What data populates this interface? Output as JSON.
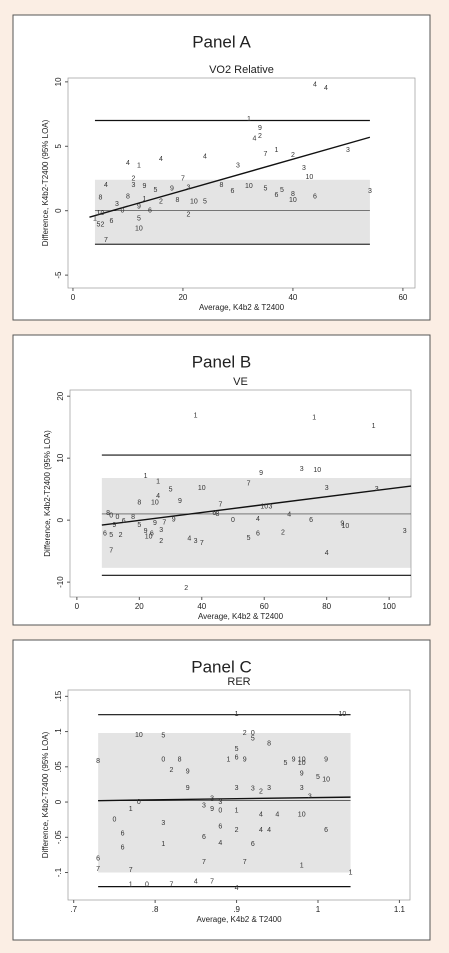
{
  "chart_data": [
    {
      "type": "scatter",
      "title": "Panel A",
      "subtitle": "VO2 Relative",
      "xlabel": "Average, K4b2 & T2400",
      "ylabel": "Difference, K4b2-T2400 (95% LOA)",
      "xlim": [
        -0.9,
        62.2
      ],
      "ylim": [
        -6,
        10.3
      ],
      "xticks": [
        0,
        20,
        40,
        60
      ],
      "yticks": [
        -5,
        0,
        5,
        10
      ],
      "loa_upper": 7.0,
      "loa_lower": -2.6,
      "mean": 0,
      "band": [
        -2.5,
        2.4
      ],
      "line_x": [
        4,
        54
      ],
      "regression": {
        "x": [
          3,
          54
        ],
        "values": [
          -0.5,
          5.7
        ]
      },
      "series": [
        {
          "color": "#333333",
          "x": [
            44,
            46,
            32,
            34,
            33,
            34,
            35,
            37,
            40,
            24,
            16,
            10,
            12,
            30,
            42,
            20,
            11,
            50,
            43,
            6,
            11,
            13,
            15,
            18,
            21,
            27,
            29,
            32,
            35,
            38,
            40,
            37,
            40,
            44,
            54,
            5,
            10,
            13,
            16,
            19,
            22,
            24,
            8,
            12,
            14,
            9,
            21,
            5,
            4,
            7,
            12,
            5,
            12,
            6
          ],
          "values": [
            9.8,
            9.5,
            7.1,
            6.4,
            5.6,
            5.8,
            4.4,
            4.7,
            4.3,
            4.2,
            4.0,
            3.7,
            3.5,
            3.5,
            3.3,
            2.5,
            2.5,
            4.7,
            2.6,
            2.0,
            2.0,
            1.9,
            1.6,
            1.7,
            1.8,
            2.0,
            1.5,
            1.9,
            1.7,
            1.6,
            1.3,
            1.2,
            0.8,
            1.1,
            1.5,
            1.0,
            1.1,
            0.9,
            0.7,
            0.8,
            0.7,
            0.7,
            0.5,
            0.3,
            0.0,
            0.0,
            -0.3,
            -0.2,
            -0.6,
            -0.8,
            -0.6,
            -1.1,
            -1.4,
            -2.3
          ],
          "markers": [
            "4",
            "4",
            "1",
            "9",
            "4",
            "2",
            "7",
            "1",
            "2",
            "4",
            "4",
            "4",
            "1",
            "3",
            "3",
            "7",
            "2",
            "3",
            "10",
            "4",
            "3",
            "9",
            "5",
            "9",
            "3",
            "8",
            "6",
            "10",
            "5",
            "5",
            "8",
            "6",
            "10",
            "6",
            "3",
            "8",
            "8",
            "1",
            "2",
            "8",
            "10",
            "5",
            "3",
            "9",
            "6",
            "0",
            "2",
            "10",
            "1",
            "6",
            "5",
            "52",
            "10",
            "7"
          ]
        }
      ]
    },
    {
      "type": "scatter",
      "title": "Panel B",
      "subtitle": "VE",
      "xlabel": "Average, K4b2 & T2400",
      "ylabel": "Difference, K4b2-T2400 (95% LOA)",
      "xlim": [
        -2.2,
        107
      ],
      "ylim": [
        -12.4,
        21
      ],
      "xticks": [
        0,
        20,
        40,
        60,
        80,
        100
      ],
      "yticks": [
        -10,
        0,
        10,
        20
      ],
      "loa_upper": 10.5,
      "loa_lower": -8.9,
      "mean": 1.0,
      "band": [
        -7.7,
        6.8
      ],
      "line_x": [
        8,
        107
      ],
      "regression": {
        "x": [
          8,
          107
        ],
        "values": [
          -0.8,
          5.5
        ]
      },
      "series": [
        {
          "color": "#333333",
          "x": [
            38,
            76,
            95,
            72,
            77,
            59,
            55,
            80,
            96,
            22,
            26,
            30,
            40,
            26,
            20,
            25,
            33,
            46,
            60,
            62,
            68,
            44,
            45,
            10,
            11,
            13,
            18,
            15,
            12,
            20,
            25,
            28,
            31,
            50,
            58,
            75,
            85,
            86,
            105,
            9,
            11,
            14,
            22,
            24,
            27,
            23,
            27,
            36,
            38,
            40,
            58,
            55,
            66,
            80,
            11,
            35
          ],
          "values": [
            16.9,
            16.5,
            15.2,
            8.2,
            8.1,
            7.6,
            5.9,
            5.2,
            5.0,
            7.1,
            6.2,
            4.9,
            5.2,
            3.9,
            2.8,
            2.8,
            3.1,
            2.5,
            2.2,
            2.2,
            0.9,
            1.1,
            1.0,
            1.1,
            0.7,
            0.5,
            0.5,
            -0.2,
            -0.8,
            -0.8,
            -0.5,
            -0.4,
            0.1,
            0.0,
            0.2,
            0.0,
            -0.6,
            -1.0,
            -1.8,
            -2.2,
            -2.4,
            -2.4,
            -1.8,
            -2.2,
            -1.6,
            -2.7,
            -3.4,
            -3.0,
            -3.4,
            -3.7,
            -2.2,
            -2.9,
            -2.0,
            -5.3,
            -4.9,
            -11.0
          ],
          "markers": [
            "1",
            "1",
            "1",
            "3",
            "10",
            "9",
            "7",
            "3",
            "3",
            "1",
            "1",
            "5",
            "10",
            "4",
            "8",
            "10",
            "9",
            "7",
            "10",
            "3",
            "4",
            "6",
            "8",
            "8",
            "0",
            "0",
            "8",
            "6",
            "9",
            "5",
            "9",
            "7",
            "9",
            "0",
            "4",
            "6",
            "9",
            "10",
            "3",
            "6",
            "5",
            "2",
            "9",
            "6",
            "3",
            "10",
            "2",
            "4",
            "3",
            "7",
            "6",
            "5",
            "2",
            "4",
            "7",
            "2"
          ]
        }
      ]
    },
    {
      "type": "scatter",
      "title": "Panel C",
      "subtitle": "RER",
      "xlabel": "Average, K4b2 & T2400",
      "ylabel": "Difference, K4b2-T2400 (95% LOA)",
      "xlim": [
        0.693,
        1.113
      ],
      "ylim": [
        -0.139,
        0.159
      ],
      "xticks": [
        {
          "value": 0.7,
          "label": ".7"
        },
        {
          "value": 0.8,
          "label": ".8"
        },
        {
          "value": 0.9,
          "label": ".9"
        },
        1,
        1.1
      ],
      "yticks": [
        {
          "value": -0.1,
          "label": "-.1"
        },
        {
          "value": -0.05,
          "label": "-.05"
        },
        0,
        {
          "value": 0.05,
          "label": ".05"
        },
        {
          "value": 0.1,
          "label": ".1"
        },
        {
          "value": 0.15,
          "label": ".15"
        }
      ],
      "loa_upper": 0.124,
      "loa_lower": -0.12,
      "mean": 0.002,
      "band": [
        -0.1,
        0.098
      ],
      "line_x": [
        0.73,
        1.04
      ],
      "regression": {
        "x": [
          0.73,
          1.04
        ],
        "values": [
          0.002,
          0.007
        ]
      },
      "series": [
        {
          "color": "#333333",
          "x": [
            0.78,
            0.81,
            0.9,
            0.92,
            0.91,
            0.92,
            0.94,
            0.9,
            0.73,
            0.81,
            0.83,
            0.82,
            0.84,
            0.89,
            0.91,
            0.96,
            0.97,
            0.98,
            0.98,
            1.01,
            0.98,
            1.0,
            1.01,
            0.84,
            0.9,
            0.92,
            0.93,
            0.94,
            0.98,
            0.99,
            0.87,
            0.88,
            0.78,
            0.93,
            0.95,
            0.98,
            0.77,
            0.81,
            0.86,
            0.87,
            0.88,
            0.9,
            0.75,
            0.76,
            0.93,
            0.94,
            0.88,
            0.9,
            0.86,
            0.88,
            0.76,
            0.92,
            1.01,
            0.73,
            0.73,
            0.81,
            0.77,
            0.86,
            0.91,
            0.98,
            1.04,
            0.77,
            0.79,
            0.82,
            0.85,
            0.87,
            0.9,
            1.03,
            0.9
          ],
          "values": [
            0.095,
            0.094,
            0.075,
            0.09,
            0.098,
            0.098,
            0.083,
            0.063,
            0.058,
            0.06,
            0.06,
            0.045,
            0.043,
            0.06,
            0.06,
            0.055,
            0.06,
            0.055,
            0.06,
            0.06,
            0.04,
            0.035,
            0.032,
            0.02,
            0.02,
            0.019,
            0.015,
            0.02,
            0.02,
            0.008,
            0.005,
            0.0,
            0.0,
            -0.018,
            -0.018,
            -0.018,
            -0.01,
            -0.03,
            -0.005,
            -0.01,
            -0.012,
            -0.012,
            -0.025,
            -0.045,
            -0.04,
            -0.04,
            -0.035,
            -0.04,
            -0.05,
            -0.058,
            -0.065,
            -0.06,
            -0.04,
            -0.08,
            -0.095,
            -0.06,
            -0.097,
            -0.085,
            -0.085,
            -0.09,
            -0.1,
            -0.117,
            -0.117,
            -0.117,
            -0.113,
            -0.113,
            0.125,
            0.125,
            -0.122
          ],
          "markers": [
            "10",
            "5",
            "5",
            "5",
            "2",
            "0",
            "8",
            "6",
            "8",
            "0",
            "8",
            "2",
            "9",
            "1",
            "9",
            "5",
            "9",
            "10",
            "10",
            "9",
            "9",
            "5",
            "10",
            "9",
            "3",
            "3",
            "2",
            "3",
            "3",
            "3",
            "3",
            "3",
            "0",
            "4",
            "4",
            "10",
            "1",
            "3",
            "3",
            "9",
            "0",
            "1",
            "0",
            "6",
            "4",
            "4",
            "6",
            "2",
            "6",
            "4",
            "6",
            "6",
            "6",
            "6",
            "7",
            "1",
            "7",
            "7",
            "7",
            "1",
            "1",
            "1",
            "0",
            "7",
            "4",
            "7",
            "1",
            "10",
            "4"
          ]
        }
      ]
    }
  ]
}
